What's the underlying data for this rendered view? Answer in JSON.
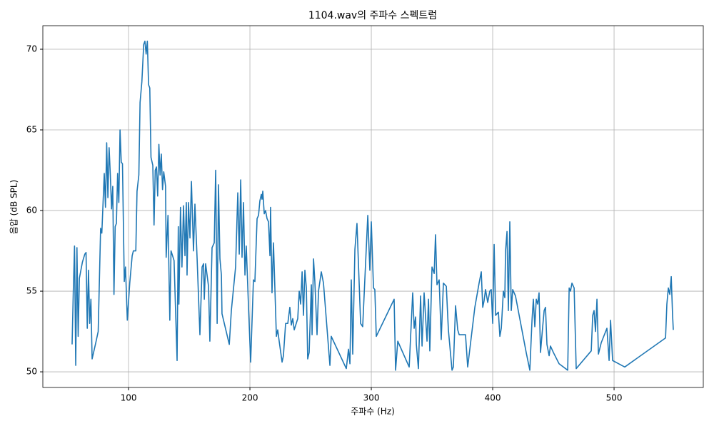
{
  "chart_data": {
    "type": "line",
    "title": "1104.wav의 주파수 스펙트럼",
    "x_label": "주파수 (Hz)",
    "y_label": "음압 (dB SPL)",
    "xlim": [
      29.4,
      573.5
    ],
    "ylim": [
      49.03,
      71.46
    ],
    "xticks": [
      100,
      200,
      300,
      400,
      500
    ],
    "yticks": [
      50,
      55,
      60,
      65,
      70
    ],
    "grid": true,
    "x": [
      53.5,
      54.5,
      55.5,
      56.5,
      57.5,
      58.5,
      59.5,
      62,
      64,
      65,
      66,
      67,
      68,
      69,
      70,
      73,
      75,
      77,
      78,
      80,
      81,
      82,
      83,
      84,
      85,
      86,
      87,
      88,
      89,
      90,
      91,
      92,
      93,
      94,
      95,
      96.5,
      97.5,
      99,
      101,
      103,
      104,
      106,
      107,
      108.5,
      109.5,
      111,
      112.5,
      113.5,
      114.5,
      115.5,
      116.5,
      117.5,
      118.5,
      120,
      121,
      122,
      123,
      124,
      125,
      126,
      127,
      128,
      129,
      130.5,
      131,
      132.5,
      134,
      135,
      137.5,
      140,
      141,
      141.5,
      142.8,
      144,
      145.3,
      146.5,
      147.6,
      148.2,
      149.4,
      150.6,
      151.8,
      153.5,
      154.7,
      156.5,
      158.8,
      160.6,
      161.8,
      162.4,
      163.5,
      165.9,
      167,
      168.8,
      170.6,
      171.8,
      173,
      174.1,
      175.3,
      176.5,
      177,
      183,
      184.7,
      188.2,
      190,
      191.2,
      192.4,
      193.5,
      194.7,
      195.9,
      197,
      198.8,
      200.6,
      202.9,
      204.1,
      205.9,
      207.1,
      208.2,
      209.4,
      210,
      210.6,
      211.8,
      212.9,
      214.1,
      215.3,
      216.5,
      217,
      218.2,
      219.4,
      221.8,
      222.9,
      224.1,
      226.5,
      227.6,
      229.4,
      231.2,
      232.9,
      234.1,
      235.3,
      236.5,
      239.4,
      240.6,
      241.8,
      243,
      244.1,
      245.3,
      246.5,
      247.6,
      248.8,
      250.6,
      251.2,
      252.4,
      253.5,
      255.3,
      256.5,
      258.8,
      260.6,
      265.9,
      267,
      279.4,
      281.2,
      282.4,
      283.5,
      284.7,
      286.5,
      288.2,
      291.2,
      292.9,
      297.1,
      298.8,
      300,
      301.8,
      302.9,
      304.1,
      318.8,
      320,
      321.8,
      331.2,
      334.1,
      335.3,
      336.5,
      337.1,
      338.8,
      340.6,
      341.8,
      343.5,
      345.9,
      347.1,
      348.2,
      350,
      351.8,
      352.9,
      354.1,
      355.9,
      357.6,
      359.4,
      361.8,
      363.5,
      366.5,
      367.6,
      369.4,
      371.2,
      372.4,
      377.6,
      379.4,
      385.3,
      388.8,
      390.6,
      391.8,
      392.9,
      394.1,
      395.9,
      397.6,
      398.8,
      400,
      401.2,
      402.4,
      404.7,
      405.9,
      407.1,
      408.8,
      410,
      410.6,
      411.8,
      412.9,
      414.1,
      415.3,
      416.5,
      418.8,
      427.6,
      430.6,
      432.4,
      433.5,
      434.7,
      435.9,
      437.1,
      438.2,
      439.4,
      441.2,
      442.4,
      443.5,
      444.7,
      446.5,
      447.6,
      450,
      454.7,
      461.8,
      463,
      464.1,
      465.3,
      467.1,
      468.8,
      481.2,
      482.4,
      483.5,
      484.7,
      485.9,
      487.1,
      489.4,
      494.1,
      495.9,
      497.1,
      498.8,
      508.8,
      542.4,
      543.5,
      544.7,
      545.9,
      547.1,
      548.2,
      548.8
    ],
    "series": [
      {
        "color": "#1f77b4",
        "values": [
          51.7,
          55,
          57.8,
          50.4,
          57.7,
          52.2,
          55.8,
          56.8,
          57.3,
          57.4,
          52.7,
          56.3,
          53,
          54.5,
          50.8,
          51.8,
          52.5,
          58.9,
          58.6,
          62.3,
          60.2,
          64.2,
          60.8,
          63.9,
          62.2,
          60.1,
          61.5,
          54.8,
          59,
          59.2,
          62.3,
          60.5,
          65,
          63,
          62.9,
          55.6,
          56.5,
          53.2,
          55.5,
          57.2,
          57.5,
          57.5,
          61.2,
          62.2,
          66.7,
          68,
          70.3,
          70.5,
          69.7,
          70.5,
          67.8,
          67.6,
          63.3,
          62.8,
          59.1,
          62.5,
          62.7,
          60.9,
          64.1,
          62.2,
          63.5,
          61.3,
          62.4,
          61.5,
          57.1,
          59.7,
          53.2,
          57.5,
          56.9,
          50.7,
          59,
          54.2,
          60.2,
          56.5,
          60.3,
          57.2,
          60.5,
          56,
          60.5,
          58.3,
          61.8,
          57.5,
          60.4,
          57,
          52.3,
          56.5,
          56.7,
          54.5,
          56.7,
          55.3,
          51.9,
          57.7,
          58,
          62.5,
          53,
          61.6,
          57,
          56,
          53.6,
          51.7,
          53.8,
          56.5,
          61.1,
          57.3,
          61.9,
          57.1,
          60.5,
          56,
          57.8,
          54.1,
          50.6,
          55.7,
          55.6,
          59.5,
          59.7,
          60.6,
          61,
          60.7,
          61.2,
          59.8,
          60,
          59.5,
          59.3,
          57.2,
          60.2,
          54.9,
          58,
          52.2,
          52.6,
          51.9,
          50.6,
          51,
          53,
          53,
          54,
          52.9,
          53.3,
          52.6,
          53.3,
          55,
          54.2,
          56.2,
          53.5,
          56.3,
          55.2,
          50.8,
          51.2,
          55.4,
          52.3,
          57,
          55.6,
          52.3,
          55,
          56.2,
          55.5,
          50.4,
          52.2,
          50.2,
          51.4,
          50.5,
          55.7,
          51.1,
          57.6,
          59.2,
          53,
          52.8,
          59.7,
          56.3,
          59.3,
          55.2,
          55.1,
          52.2,
          54.5,
          50.1,
          51.9,
          50.3,
          54.9,
          52.7,
          53.4,
          51.7,
          50.2,
          54.7,
          51.6,
          54.9,
          51.9,
          54.5,
          51.3,
          56.5,
          56.1,
          58.5,
          55.4,
          55.7,
          52,
          55.5,
          55.3,
          52.6,
          50.1,
          50.3,
          54.1,
          52.6,
          52.3,
          52.3,
          50.3,
          54,
          55.5,
          56.2,
          54,
          54.4,
          55.1,
          54.3,
          55,
          55.1,
          53,
          57.9,
          53.5,
          53.7,
          52.2,
          52.7,
          55,
          54.6,
          57.5,
          58.7,
          53.8,
          59.3,
          53.8,
          55.1,
          54.7,
          51.2,
          50.1,
          53.2,
          54.5,
          52.8,
          54.5,
          54.2,
          54.9,
          51.2,
          52.8,
          53.8,
          54,
          51.7,
          51,
          51.6,
          51.2,
          50.5,
          50.1,
          55.2,
          55,
          55.5,
          55.2,
          50.2,
          51.3,
          53.5,
          53.8,
          52.5,
          54.5,
          51.1,
          51.8,
          52.7,
          50.7,
          53.2,
          50.7,
          50.3,
          52.1,
          54.2,
          55.2,
          54.8,
          55.9,
          53.5,
          52.6
        ]
      }
    ]
  }
}
